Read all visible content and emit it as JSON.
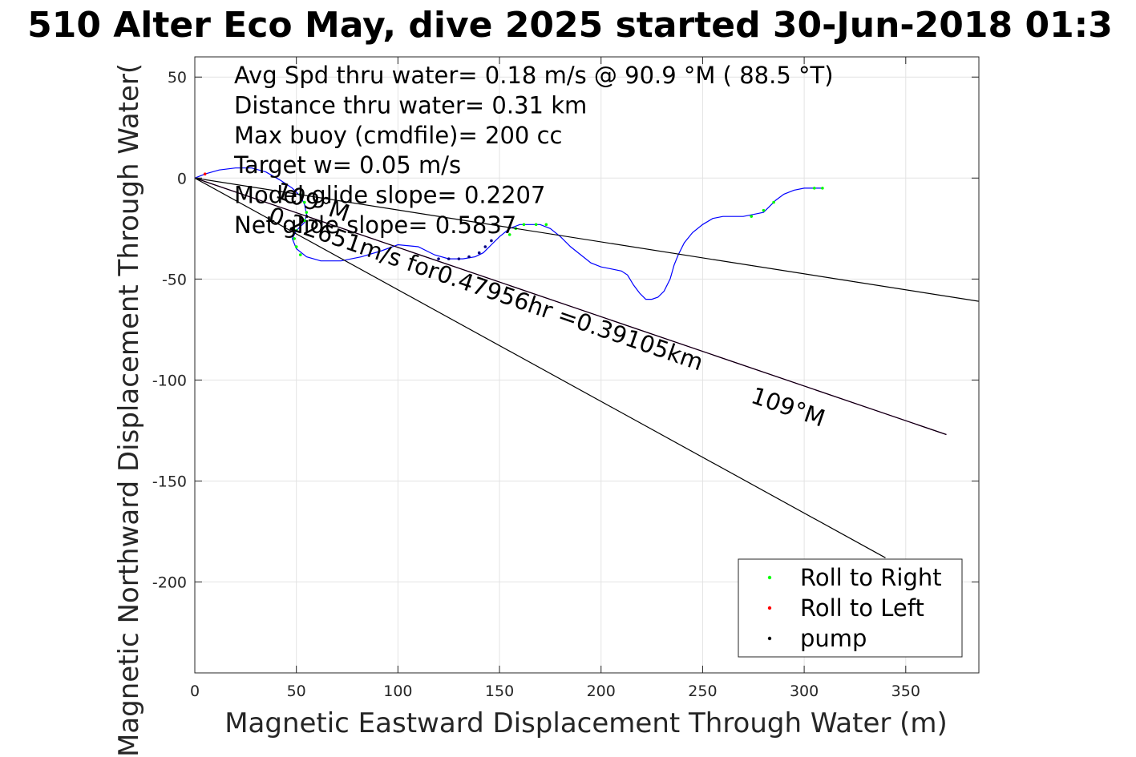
{
  "chart_data": {
    "type": "line",
    "title": "510 Alter Eco May, dive 2025 started 30-Jun-2018 01:3",
    "xlabel": "Magnetic Eastward Displacement Through Water (m)",
    "ylabel": "Magnetic Northward Displacement Through Water(",
    "xlim": [
      0,
      386
    ],
    "ylim": [
      -245,
      60
    ],
    "xticks": [
      0,
      50,
      100,
      150,
      200,
      250,
      300,
      350
    ],
    "yticks": [
      50,
      0,
      -50,
      -100,
      -150,
      -200
    ],
    "xtick_labels": [
      "0",
      "50",
      "100",
      "150",
      "200",
      "250",
      "300",
      "350"
    ],
    "ytick_labels": [
      "50",
      "0",
      "-50",
      "-100",
      "-150",
      "-200"
    ],
    "grid": true,
    "legend_position": "bottom-right",
    "annotations": [
      "Avg Spd thru water=  0.18 m/s @  90.9 °M ( 88.5 °T)",
      "Distance thru water=  0.31 km",
      "Max buoy (cmdfile)= 200 cc",
      "Target w= 0.05 m/s",
      "Model glide slope= 0.2207",
      "Net glide slope= 0.5837"
    ],
    "course_label": "0.22651m/s for0.47956hr =0.39105km",
    "heading_labels": [
      "109°M",
      "109°M"
    ],
    "legend": [
      {
        "label": "Roll to Right",
        "color": "#00ff00"
      },
      {
        "label": "Roll to Left",
        "color": "#ff0000"
      },
      {
        "label": "pump",
        "color": "#000000"
      }
    ],
    "series": [
      {
        "style": "line",
        "color": "#0000ff",
        "x": [
          0,
          5,
          12,
          20,
          28,
          35,
          42,
          48,
          52,
          54,
          55,
          54,
          50,
          48,
          50,
          55,
          62,
          72,
          82,
          92,
          100,
          110,
          118,
          125,
          132,
          138,
          142,
          146,
          150,
          155,
          160,
          165,
          170,
          175,
          180,
          185,
          190,
          195,
          200,
          205,
          210,
          213,
          216,
          219,
          222,
          225,
          228,
          231,
          234,
          236,
          238,
          241,
          245,
          250,
          255,
          260,
          265,
          270,
          275,
          280,
          283,
          286,
          290,
          295,
          300,
          305,
          309
        ],
        "y": [
          0,
          2,
          4,
          5,
          5,
          3,
          -1,
          -5,
          -9,
          -13,
          -18,
          -22,
          -26,
          -30,
          -35,
          -39,
          -41,
          -41,
          -39,
          -36,
          -33,
          -34,
          -38,
          -40,
          -40,
          -39,
          -37,
          -33,
          -29,
          -25,
          -23,
          -23,
          -23,
          -25,
          -29,
          -34,
          -38,
          -42,
          -44,
          -45,
          -46,
          -48,
          -53,
          -57,
          -60,
          -60,
          -59,
          -56,
          -50,
          -43,
          -38,
          -32,
          -27,
          -23,
          -20,
          -19,
          -19,
          -19,
          -18,
          -17,
          -14,
          -11,
          -8,
          -6,
          -5,
          -5,
          -5
        ]
      },
      {
        "style": "markers",
        "color": "#00ff00",
        "x": [
          52,
          54,
          55,
          54,
          50,
          49,
          50,
          52,
          155,
          158,
          162,
          168,
          173,
          274,
          280,
          285,
          305,
          309
        ],
        "y": [
          -8,
          -12,
          -17,
          -21,
          -26,
          -30,
          -34,
          -38,
          -28,
          -25,
          -23,
          -23,
          -23,
          -19,
          -16,
          -12,
          -5,
          -5
        ]
      },
      {
        "style": "markers",
        "color": "#ff0000",
        "x": [
          5
        ],
        "y": [
          2
        ]
      },
      {
        "style": "markers",
        "color": "#000080",
        "x": [
          120,
          125,
          130,
          135,
          140,
          143,
          146
        ],
        "y": [
          -40,
          -40,
          -40,
          -39,
          -37,
          -34,
          -31
        ]
      },
      {
        "style": "line",
        "color": "#ff00ff",
        "x": [
          0,
          370
        ],
        "y": [
          0,
          -127
        ]
      },
      {
        "style": "line",
        "color": "#000000",
        "x": [
          0,
          370
        ],
        "y": [
          0,
          -127
        ]
      },
      {
        "style": "line",
        "color": "#000000",
        "x": [
          0,
          386
        ],
        "y": [
          0,
          -61
        ]
      },
      {
        "style": "line",
        "color": "#000000",
        "x": [
          0,
          340
        ],
        "y": [
          0,
          -188
        ]
      }
    ]
  }
}
